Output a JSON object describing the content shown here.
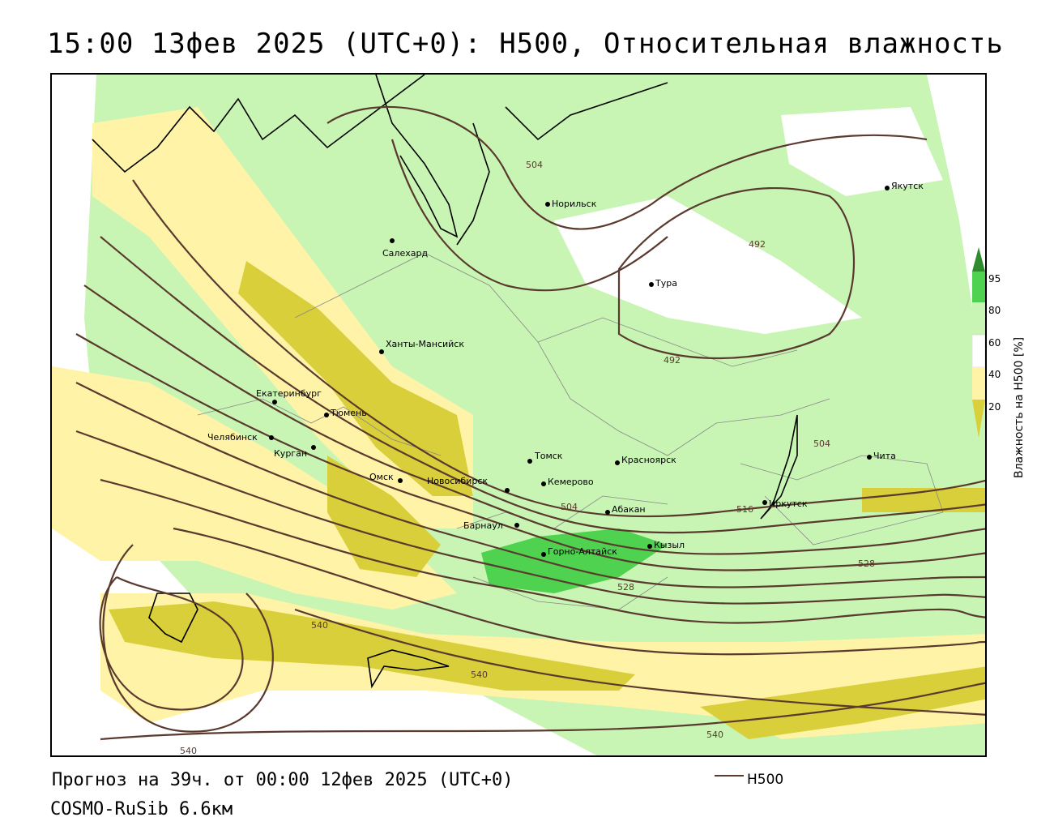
{
  "title": "15:00 13фев 2025 (UTC+0): H500, Относительная влажность",
  "forecast_line": "Прогноз на 39ч. от 00:00 12фев 2025 (UTC+0)",
  "model_line": "COSMO-RuSib 6.6км",
  "legend": {
    "line_label": "H500",
    "line_color": "#5a3a2e"
  },
  "colorbar": {
    "title": "Влажность на H500 [%]",
    "ticks": [
      "95",
      "80",
      "60",
      "40",
      "20"
    ],
    "colors": {
      "above_95": "#2e8b2e",
      "80_95": "#4fd24f",
      "60_80": "#c8f5b4",
      "40_60": "#ffffff",
      "20_40": "#fff3a8",
      "below_20": "#d9cf3a"
    }
  },
  "cities": [
    {
      "name": "Норильск"
    },
    {
      "name": "Якутск"
    },
    {
      "name": "Салехард"
    },
    {
      "name": "Тура"
    },
    {
      "name": "Ханты-Мансийск"
    },
    {
      "name": "Екатеринбург"
    },
    {
      "name": "Тюмень"
    },
    {
      "name": "Челябинск"
    },
    {
      "name": "Курган"
    },
    {
      "name": "Омск"
    },
    {
      "name": "Новосибирск"
    },
    {
      "name": "Томск"
    },
    {
      "name": "Красноярск"
    },
    {
      "name": "Кемерово"
    },
    {
      "name": "Абакан"
    },
    {
      "name": "Барнаул"
    },
    {
      "name": "Горно-Алтайск"
    },
    {
      "name": "Кызыл"
    },
    {
      "name": "Иркутск"
    },
    {
      "name": "Чита"
    }
  ],
  "contour_labels": [
    "504",
    "492",
    "492",
    "504",
    "504",
    "516",
    "528",
    "528",
    "540",
    "540",
    "540",
    "540"
  ]
}
